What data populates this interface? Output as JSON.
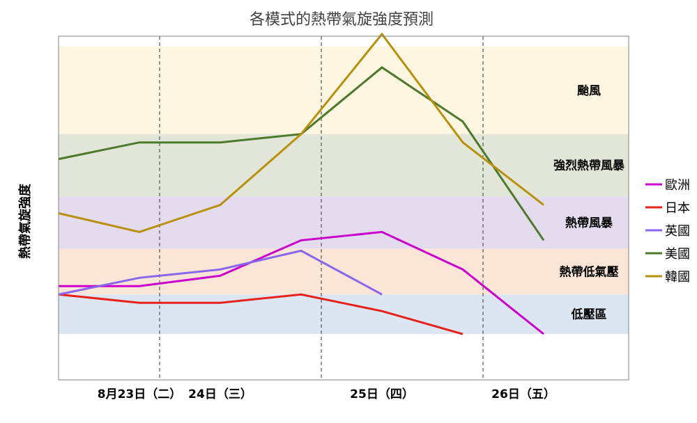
{
  "chart_data": {
    "type": "line",
    "title": "各模式的熱帶氣旋強度預測",
    "ylabel": "熱帶氣旋強度",
    "xlabel": "",
    "x_ticks": [
      "8月23日（二）",
      "24日（三）",
      "25日（四）",
      "26日（五）"
    ],
    "bands": [
      {
        "label": "颱風",
        "from": 118,
        "to": 160,
        "color": "#fdf6e0"
      },
      {
        "label": "強烈熱帶風暴",
        "from": 88,
        "to": 118,
        "color": "#e1e6d8"
      },
      {
        "label": "熱帶風暴",
        "from": 63,
        "to": 88,
        "color": "#e5dbee"
      },
      {
        "label": "熱帶低氣壓",
        "from": 41,
        "to": 63,
        "color": "#fbe5d6"
      },
      {
        "label": "低壓區",
        "from": 22,
        "to": 41,
        "color": "#dce6f2"
      }
    ],
    "ylim": [
      0,
      165
    ],
    "xlim": [
      0,
      7
    ],
    "series": [
      {
        "name": "歐洲",
        "color": "#cc00cc",
        "x": [
          0,
          1,
          2,
          3,
          4,
          5,
          6
        ],
        "y": [
          45,
          45,
          50,
          67,
          71,
          53,
          22
        ]
      },
      {
        "name": "日本",
        "color": "#e8201a",
        "x": [
          0,
          1,
          2,
          3,
          4,
          5
        ],
        "y": [
          41,
          37,
          37,
          41,
          33,
          22
        ]
      },
      {
        "name": "英國",
        "color": "#8866ee",
        "x": [
          0,
          1,
          2,
          3,
          4
        ],
        "y": [
          41,
          49,
          53,
          62,
          41
        ]
      },
      {
        "name": "美國",
        "color": "#4d7a2a",
        "x": [
          0,
          1,
          2,
          3,
          4,
          5,
          6
        ],
        "y": [
          106,
          114,
          114,
          118,
          150,
          124,
          67
        ]
      },
      {
        "name": "韓國",
        "color": "#b8900e",
        "x": [
          0,
          1,
          2,
          3,
          4,
          5,
          6
        ],
        "y": [
          80,
          71,
          84,
          118,
          166,
          114,
          84
        ]
      }
    ],
    "dividers_x": [
      1.25,
      3.25,
      5.25
    ],
    "x_tick_positions": [
      1,
      2,
      4,
      5.75
    ],
    "legend_position": "right",
    "grid": false
  }
}
